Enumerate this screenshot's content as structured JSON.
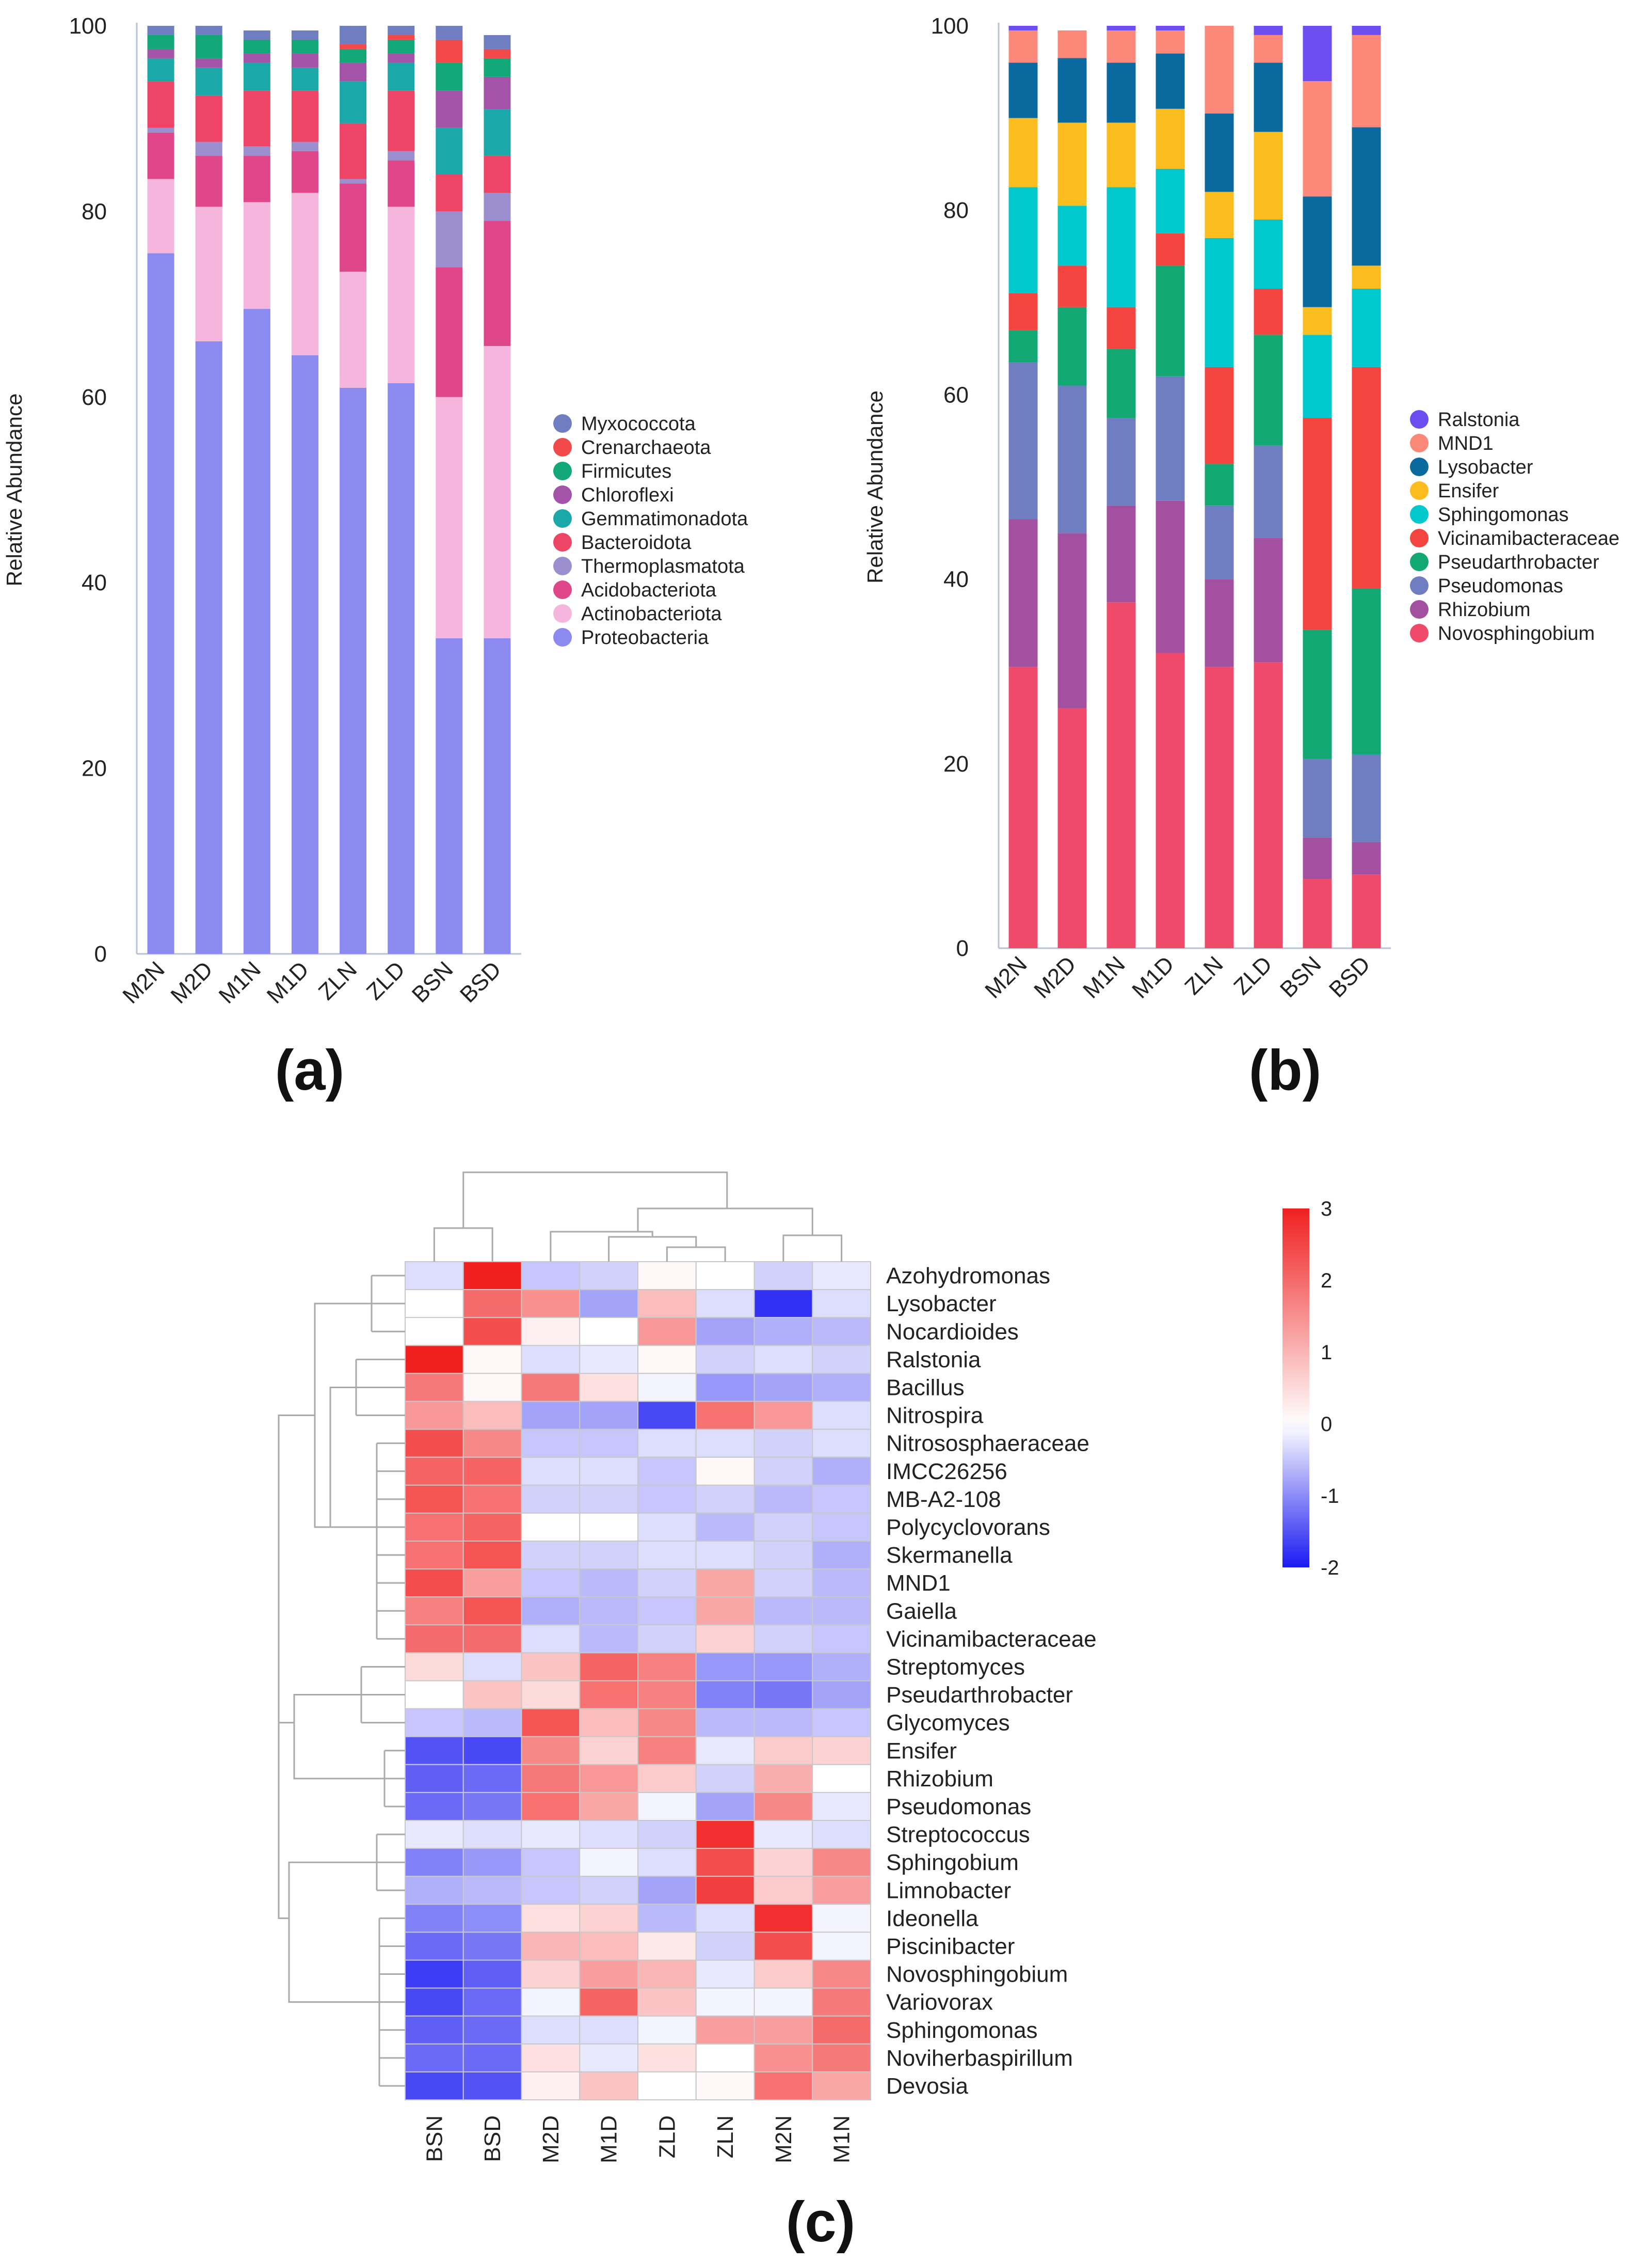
{
  "panels": [
    {
      "label": "(a)",
      "chart_data": {
        "type": "bar",
        "stacked": true,
        "ylabel": "Relative Abundance",
        "xlabel": "",
        "ylim": [
          0,
          100
        ],
        "yticks": [
          0,
          20,
          40,
          60,
          80,
          100
        ],
        "categories": [
          "M2N",
          "M2D",
          "M1N",
          "M1D",
          "ZLN",
          "ZLD",
          "BSN",
          "BSD"
        ],
        "legend_position": "right",
        "series": [
          {
            "name": "Proteobacteria",
            "color": "#8a8af0",
            "values": [
              75.5,
              66,
              69.5,
              64.5,
              61,
              61.5,
              34,
              34
            ]
          },
          {
            "name": "Actinobacteriota",
            "color": "#f5b5dc",
            "values": [
              8,
              14.5,
              11.5,
              17.5,
              12.5,
              19,
              26,
              31.5
            ]
          },
          {
            "name": "Acidobacteriota",
            "color": "#e0478a",
            "values": [
              5,
              5.5,
              5,
              4.5,
              9.5,
              5,
              14,
              13.5
            ]
          },
          {
            "name": "Thermoplasmatota",
            "color": "#9b8fd0",
            "values": [
              0.5,
              1.5,
              1,
              1,
              0.5,
              1,
              6,
              3
            ]
          },
          {
            "name": "Bacteroidota",
            "color": "#ee4466",
            "values": [
              5,
              5,
              6,
              5.5,
              6,
              6.5,
              4,
              4
            ]
          },
          {
            "name": "Gemmatimonadota",
            "color": "#1aa8a8",
            "values": [
              2.5,
              3,
              3,
              2.5,
              4.5,
              3,
              5,
              5
            ]
          },
          {
            "name": "Chloroflexi",
            "color": "#a454a8",
            "values": [
              1,
              1,
              1,
              1.5,
              2,
              1,
              4,
              3.5
            ]
          },
          {
            "name": "Firmicutes",
            "color": "#12a878",
            "values": [
              1.5,
              2.5,
              1.5,
              1.5,
              1.5,
              1.5,
              3,
              2
            ]
          },
          {
            "name": "Crenarchaeota",
            "color": "#f24a4a",
            "values": [
              0,
              0,
              0,
              0,
              0.5,
              0.5,
              2.5,
              1
            ]
          },
          {
            "name": "Myxococcota",
            "color": "#6f7ec0",
            "values": [
              1,
              1,
              1,
              1,
              2,
              1,
              1.5,
              1.5
            ]
          }
        ]
      }
    },
    {
      "label": "(b)",
      "chart_data": {
        "type": "bar",
        "stacked": true,
        "ylabel": "Relative Abundance",
        "xlabel": "",
        "ylim": [
          0,
          100
        ],
        "yticks": [
          0,
          20,
          40,
          60,
          80,
          100
        ],
        "categories": [
          "M2N",
          "M2D",
          "M1N",
          "M1D",
          "ZLN",
          "ZLD",
          "BSN",
          "BSD"
        ],
        "legend_position": "right",
        "series": [
          {
            "name": "Novosphingobium",
            "color": "#f04a6a",
            "values": [
              30.5,
              26,
              37.5,
              32,
              30.5,
              31,
              7.5,
              8
            ]
          },
          {
            "name": "Rhizobium",
            "color": "#a450a0",
            "values": [
              16,
              19,
              10.5,
              16.5,
              9.5,
              13.5,
              4.5,
              3.5
            ]
          },
          {
            "name": "Pseudomonas",
            "color": "#6f7ec0",
            "values": [
              17,
              16,
              9.5,
              13.5,
              8,
              10,
              8.5,
              9.5
            ]
          },
          {
            "name": "Pseudarthrobacter",
            "color": "#12a874",
            "values": [
              3.5,
              8.5,
              7.5,
              12,
              4.5,
              12,
              14,
              18
            ]
          },
          {
            "name": "Vicinamibacteraceae",
            "color": "#f4443f",
            "values": [
              4,
              4.5,
              4.5,
              3.5,
              10.5,
              5,
              23,
              24
            ]
          },
          {
            "name": "Sphingomonas",
            "color": "#00c8cc",
            "values": [
              11.5,
              6.5,
              13,
              7,
              14,
              7.5,
              9,
              8.5
            ]
          },
          {
            "name": "Ensifer",
            "color": "#fbbd1e",
            "values": [
              7.5,
              9,
              7,
              6.5,
              5,
              9.5,
              3,
              2.5
            ]
          },
          {
            "name": "Lysobacter",
            "color": "#0a6aa0",
            "values": [
              6,
              7,
              6.5,
              6,
              8.5,
              7.5,
              12,
              15
            ]
          },
          {
            "name": "MND1",
            "color": "#fb8878",
            "values": [
              3.5,
              3,
              3.5,
              2.5,
              9.5,
              3,
              12.5,
              10
            ]
          },
          {
            "name": "Ralstonia",
            "color": "#6c4ef0",
            "values": [
              0.5,
              0,
              0.5,
              0.5,
              0,
              1,
              6,
              1
            ]
          }
        ]
      }
    },
    {
      "label": "(c)",
      "chart_data": {
        "type": "heatmap",
        "columns": [
          "BSN",
          "BSD",
          "M2D",
          "M1D",
          "ZLD",
          "ZLN",
          "M2N",
          "M1N"
        ],
        "rows": [
          "Azohydromonas",
          "Lysobacter",
          "Nocardioides",
          "Ralstonia",
          "Bacillus",
          "Nitrospira",
          "Nitrososphaeraceae",
          "IMCC26256",
          "MB-A2-108",
          "Polycyclovorans",
          "Skermanella",
          "MND1",
          "Gaiella",
          "Vicinamibacteraceae",
          "Streptomyces",
          "Pseudarthrobacter",
          "Glycomyces",
          "Ensifer",
          "Rhizobium",
          "Pseudomonas",
          "Streptococcus",
          "Sphingobium",
          "Limnobacter",
          "Ideonella",
          "Piscinibacter",
          "Novosphingobium",
          "Variovorax",
          "Sphingomonas",
          "Noviherbaspirillum",
          "Devosia"
        ],
        "values": [
          [
            -0.3,
            3.0,
            -0.5,
            -0.4,
            0.1,
            0.0,
            -0.4,
            -0.2
          ],
          [
            0.0,
            2.0,
            1.5,
            -0.8,
            0.9,
            -0.3,
            -1.8,
            -0.3
          ],
          [
            0.0,
            2.4,
            0.2,
            0.0,
            1.4,
            -0.8,
            -0.7,
            -0.6
          ],
          [
            3.0,
            0.1,
            -0.3,
            -0.2,
            0.1,
            -0.4,
            -0.3,
            -0.4
          ],
          [
            1.8,
            0.1,
            1.8,
            0.4,
            -0.1,
            -0.9,
            -0.8,
            -0.7
          ],
          [
            1.4,
            0.9,
            -0.8,
            -0.8,
            -1.6,
            1.9,
            1.4,
            -0.3
          ],
          [
            2.4,
            1.6,
            -0.5,
            -0.5,
            -0.3,
            -0.3,
            -0.4,
            -0.3
          ],
          [
            2.1,
            2.1,
            -0.3,
            -0.3,
            -0.5,
            0.1,
            -0.4,
            -0.7
          ],
          [
            2.3,
            1.9,
            -0.4,
            -0.4,
            -0.5,
            -0.4,
            -0.6,
            -0.5
          ],
          [
            1.9,
            2.1,
            0.0,
            0.0,
            -0.3,
            -0.6,
            -0.4,
            -0.5
          ],
          [
            1.9,
            2.3,
            -0.4,
            -0.4,
            -0.3,
            -0.3,
            -0.4,
            -0.7
          ],
          [
            2.4,
            1.3,
            -0.5,
            -0.6,
            -0.4,
            1.2,
            -0.4,
            -0.6
          ],
          [
            1.7,
            2.3,
            -0.7,
            -0.6,
            -0.5,
            1.2,
            -0.6,
            -0.6
          ],
          [
            2.0,
            2.0,
            -0.3,
            -0.6,
            -0.4,
            0.6,
            -0.4,
            -0.5
          ],
          [
            0.5,
            -0.3,
            0.8,
            2.1,
            1.7,
            -0.9,
            -0.9,
            -0.7
          ],
          [
            0.0,
            0.8,
            0.5,
            1.9,
            1.7,
            -1.1,
            -1.2,
            -0.8
          ],
          [
            -0.5,
            -0.6,
            2.3,
            0.9,
            1.6,
            -0.6,
            -0.6,
            -0.5
          ],
          [
            -1.5,
            -1.6,
            1.6,
            0.6,
            1.7,
            -0.2,
            0.7,
            0.6
          ],
          [
            -1.4,
            -1.3,
            1.8,
            1.4,
            0.7,
            -0.4,
            1.1,
            0.0
          ],
          [
            -1.3,
            -1.2,
            1.9,
            1.2,
            -0.1,
            -0.8,
            1.6,
            -0.2
          ],
          [
            -0.2,
            -0.3,
            -0.2,
            -0.3,
            -0.4,
            2.8,
            -0.2,
            -0.3
          ],
          [
            -1.1,
            -0.9,
            -0.5,
            -0.1,
            -0.3,
            2.4,
            0.6,
            1.6
          ],
          [
            -0.7,
            -0.6,
            -0.5,
            -0.4,
            -0.8,
            2.6,
            0.7,
            1.3
          ],
          [
            -1.1,
            -1.0,
            0.4,
            0.6,
            -0.6,
            -0.3,
            2.8,
            -0.1
          ],
          [
            -1.3,
            -1.2,
            1.0,
            0.9,
            0.3,
            -0.4,
            2.4,
            -0.1
          ],
          [
            -1.7,
            -1.4,
            0.6,
            1.3,
            1.0,
            -0.2,
            0.7,
            1.6
          ],
          [
            -1.6,
            -1.3,
            -0.1,
            2.1,
            0.8,
            -0.1,
            -0.1,
            1.8
          ],
          [
            -1.4,
            -1.3,
            -0.3,
            -0.3,
            -0.1,
            1.3,
            1.3,
            2.0
          ],
          [
            -1.3,
            -1.3,
            0.4,
            -0.2,
            0.4,
            0.0,
            1.5,
            1.8
          ],
          [
            -1.6,
            -1.5,
            0.2,
            0.8,
            0.0,
            0.1,
            1.9,
            1.2
          ]
        ],
        "colorbar": {
          "min": -2,
          "max": 3,
          "ticks": [
            3,
            2,
            1,
            0,
            -1,
            -2
          ],
          "colors": {
            "low": "#1a1af2",
            "mid": "#ffffff",
            "high": "#f02020"
          }
        }
      }
    }
  ]
}
